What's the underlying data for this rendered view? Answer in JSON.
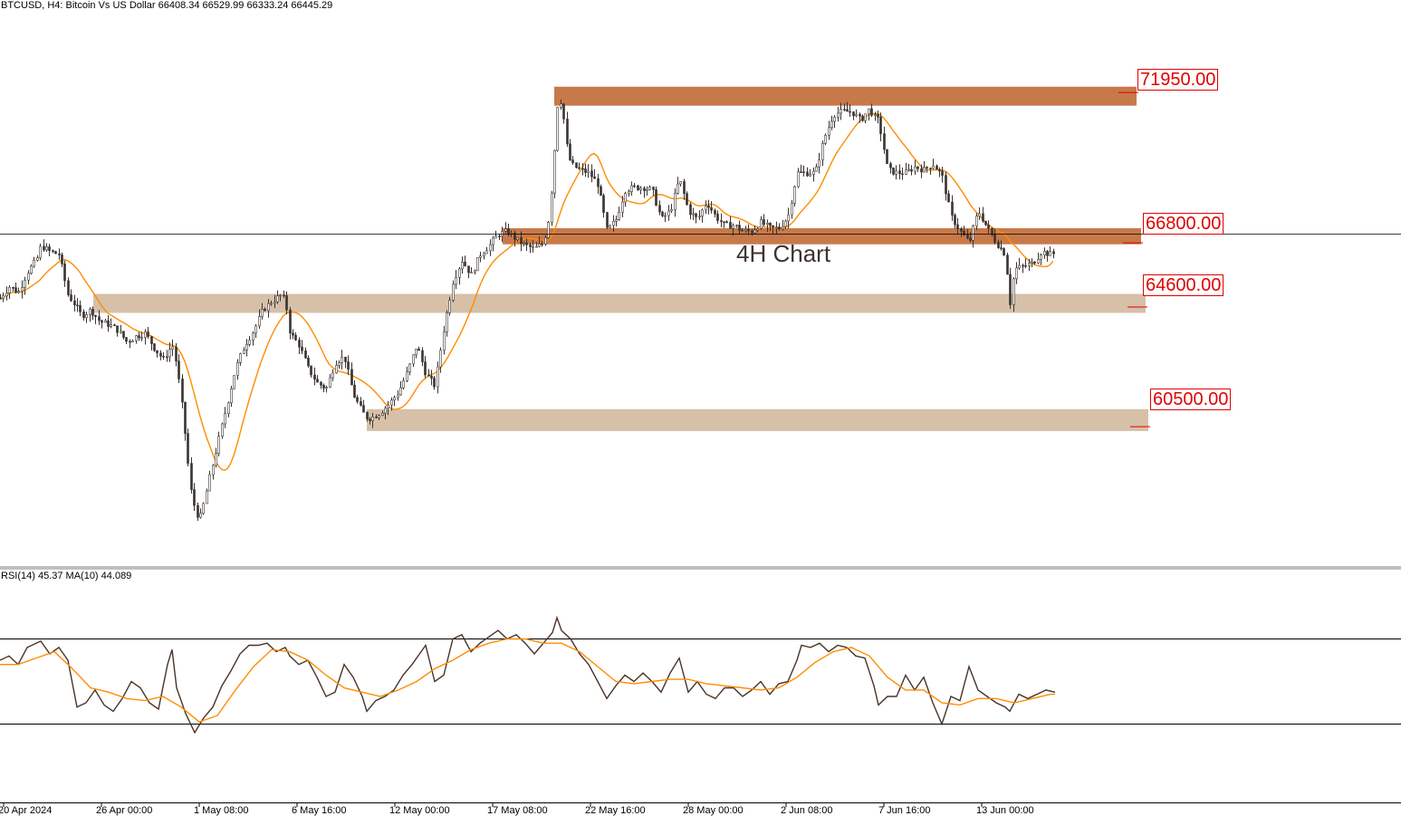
{
  "header": {
    "symbol": "BTCUSD",
    "timeframe": "H4",
    "description": "Bitcoin Vs US Dollar",
    "ohlc": "66408.34 66529.99 66333.24 66445.29",
    "text": "BTCUSD, H4:  Bitcoin Vs US Dollar  66408.34 66529.99 66333.24 66445.29"
  },
  "annotation": "4H Chart",
  "rsi_header": "RSI(14) 45.37 MA(10) 44.089",
  "colors": {
    "candle": "#3a3330",
    "ma": "#ff8c00",
    "resistance_zone": "#c8794a",
    "support_zone": "#d6c0a8",
    "level_label": "#e00000",
    "rsi_line": "#4a3326"
  },
  "chart_data": [
    {
      "type": "candlestick",
      "symbol": "BTCUSD",
      "timeframe": "H4",
      "ylim": [
        56500,
        74500
      ],
      "current_price": 66445.29,
      "x_tick_labels": [
        "20 Apr 2024",
        "26 Apr 00:00",
        "1 May 08:00",
        "6 May 16:00",
        "12 May 00:00",
        "17 May 08:00",
        "22 May 16:00",
        "28 May 00:00",
        "2 Jun 08:00",
        "7 Jun 16:00",
        "13 Jun 00:00"
      ],
      "zones": [
        {
          "label": "71950.00",
          "value": 71950,
          "low": 71500,
          "high": 72150,
          "kind": "resistance"
        },
        {
          "label": "66800.00",
          "value": 66800,
          "low": 66750,
          "high": 67300,
          "kind": "resistance"
        },
        {
          "label": "64600.00",
          "value": 64600,
          "low": 64400,
          "high": 65050,
          "kind": "support"
        },
        {
          "label": "60500.00",
          "value": 60500,
          "low": 60350,
          "high": 61100,
          "kind": "support"
        }
      ],
      "price_path_x": [
        0,
        10,
        20,
        30,
        40,
        45,
        55,
        65,
        75,
        80,
        90,
        100,
        110,
        120,
        130,
        140,
        150,
        160,
        170,
        180,
        190,
        195,
        200,
        205,
        210,
        215,
        220,
        225,
        230,
        240,
        250,
        260,
        270,
        280,
        290,
        300,
        310,
        315,
        320,
        330,
        340,
        350,
        360,
        370,
        380,
        390,
        400,
        405,
        410,
        420,
        430,
        440,
        450,
        460,
        470,
        480,
        490,
        500,
        510,
        520,
        530,
        540,
        550,
        560,
        570,
        580,
        590,
        600,
        605,
        610,
        615,
        620,
        625,
        630,
        640,
        650,
        660,
        670,
        680,
        690,
        700,
        710,
        720,
        730,
        740,
        750,
        760,
        770,
        780,
        790,
        800,
        810,
        820,
        830,
        840,
        850,
        860,
        870,
        880,
        890,
        900,
        910,
        920,
        930,
        940,
        950,
        960,
        965,
        970,
        980,
        990,
        1000,
        1010,
        1020,
        1030,
        1040,
        1050,
        1060,
        1070,
        1080,
        1090,
        1100,
        1110,
        1115,
        1120,
        1130,
        1140,
        1150,
        1160,
        1165
      ],
      "price_path_y": [
        64900,
        65300,
        65100,
        65800,
        66200,
        66700,
        66500,
        66400,
        65000,
        64800,
        64300,
        64500,
        64100,
        64000,
        63800,
        63400,
        63600,
        63700,
        63200,
        62800,
        63300,
        62600,
        61400,
        60000,
        58400,
        57700,
        57300,
        57900,
        58600,
        59900,
        61200,
        62500,
        63300,
        63800,
        64500,
        64800,
        65000,
        64800,
        63700,
        63300,
        62500,
        62000,
        61800,
        62700,
        62900,
        61600,
        61000,
        60800,
        60800,
        61000,
        61300,
        61700,
        62400,
        63300,
        62300,
        61900,
        63900,
        65500,
        66200,
        65700,
        66400,
        66700,
        67100,
        67200,
        66900,
        66700,
        66600,
        66800,
        67500,
        69000,
        71500,
        71700,
        70200,
        69500,
        69300,
        69200,
        68800,
        67200,
        67600,
        68600,
        68700,
        68700,
        68600,
        67600,
        67900,
        69000,
        67900,
        67600,
        68200,
        67700,
        67400,
        67400,
        67200,
        67200,
        67500,
        67300,
        67300,
        67700,
        69200,
        69200,
        69200,
        70400,
        71200,
        71300,
        71300,
        71000,
        71400,
        71100,
        71000,
        69300,
        69200,
        69200,
        69400,
        69300,
        69500,
        69100,
        67700,
        67200,
        66800,
        67900,
        67300,
        66800,
        66400,
        64700,
        65900,
        66000,
        66100,
        66500,
        66400,
        66445
      ]
    },
    {
      "type": "line",
      "title": "RSI(14) 45.37 MA(10) 44.089",
      "ylim": [
        0,
        100
      ],
      "levels": [
        70,
        30
      ],
      "series": [
        {
          "name": "RSI(14)",
          "x": [
            0,
            10,
            20,
            30,
            45,
            55,
            65,
            75,
            85,
            95,
            105,
            115,
            125,
            135,
            145,
            155,
            165,
            175,
            185,
            190,
            195,
            205,
            215,
            225,
            235,
            245,
            255,
            265,
            275,
            285,
            295,
            305,
            315,
            320,
            330,
            340,
            350,
            360,
            370,
            380,
            390,
            400,
            405,
            415,
            425,
            435,
            445,
            455,
            465,
            470,
            480,
            490,
            500,
            510,
            520,
            530,
            540,
            550,
            560,
            570,
            580,
            590,
            600,
            610,
            615,
            620,
            630,
            640,
            650,
            660,
            670,
            680,
            690,
            700,
            710,
            720,
            730,
            740,
            750,
            760,
            770,
            780,
            790,
            800,
            810,
            820,
            830,
            840,
            850,
            860,
            870,
            880,
            885,
            895,
            905,
            915,
            925,
            935,
            945,
            955,
            965,
            970,
            980,
            990,
            1000,
            1010,
            1020,
            1030,
            1040,
            1050,
            1060,
            1070,
            1080,
            1090,
            1100,
            1110,
            1115,
            1125,
            1135,
            1145,
            1155,
            1165
          ],
          "values": [
            60,
            62,
            58,
            66,
            69,
            63,
            66,
            60,
            38,
            40,
            46,
            39,
            36,
            42,
            50,
            47,
            40,
            37,
            58,
            65,
            47,
            35,
            26,
            33,
            38,
            48,
            55,
            63,
            67,
            67,
            68,
            64,
            66,
            62,
            58,
            60,
            52,
            43,
            45,
            58,
            52,
            43,
            36,
            41,
            43,
            46,
            53,
            58,
            64,
            67,
            50,
            53,
            70,
            72,
            64,
            68,
            71,
            74,
            70,
            72,
            68,
            63,
            68,
            73,
            80,
            74,
            70,
            63,
            58,
            50,
            42,
            48,
            53,
            50,
            54,
            50,
            45,
            54,
            61,
            45,
            50,
            44,
            42,
            47,
            47,
            43,
            46,
            50,
            44,
            49,
            50,
            60,
            67,
            66,
            68,
            64,
            67,
            66,
            62,
            61,
            48,
            39,
            43,
            43,
            53,
            46,
            52,
            40,
            30,
            43,
            41,
            57,
            46,
            43,
            40,
            38,
            36,
            44,
            42,
            44,
            46,
            45
          ]
        },
        {
          "name": "MA(10)",
          "x": [
            0,
            20,
            40,
            60,
            80,
            100,
            120,
            140,
            160,
            180,
            200,
            220,
            240,
            260,
            280,
            300,
            320,
            340,
            360,
            380,
            400,
            420,
            440,
            460,
            480,
            500,
            520,
            540,
            560,
            580,
            600,
            620,
            640,
            660,
            680,
            700,
            720,
            740,
            760,
            780,
            800,
            820,
            840,
            860,
            880,
            900,
            920,
            940,
            960,
            980,
            1000,
            1020,
            1040,
            1060,
            1080,
            1100,
            1120,
            1140,
            1160,
            1165
          ],
          "values": [
            58,
            58,
            61,
            64,
            56,
            47,
            45,
            42,
            41,
            43,
            38,
            31,
            34,
            46,
            57,
            65,
            64,
            60,
            53,
            47,
            45,
            43,
            46,
            50,
            56,
            60,
            65,
            68,
            70,
            70,
            68,
            68,
            64,
            57,
            50,
            49,
            50,
            51,
            51,
            49,
            48,
            47,
            46,
            47,
            52,
            59,
            64,
            66,
            62,
            52,
            46,
            46,
            40,
            39,
            42,
            42,
            40,
            42,
            44,
            44
          ]
        }
      ]
    }
  ]
}
